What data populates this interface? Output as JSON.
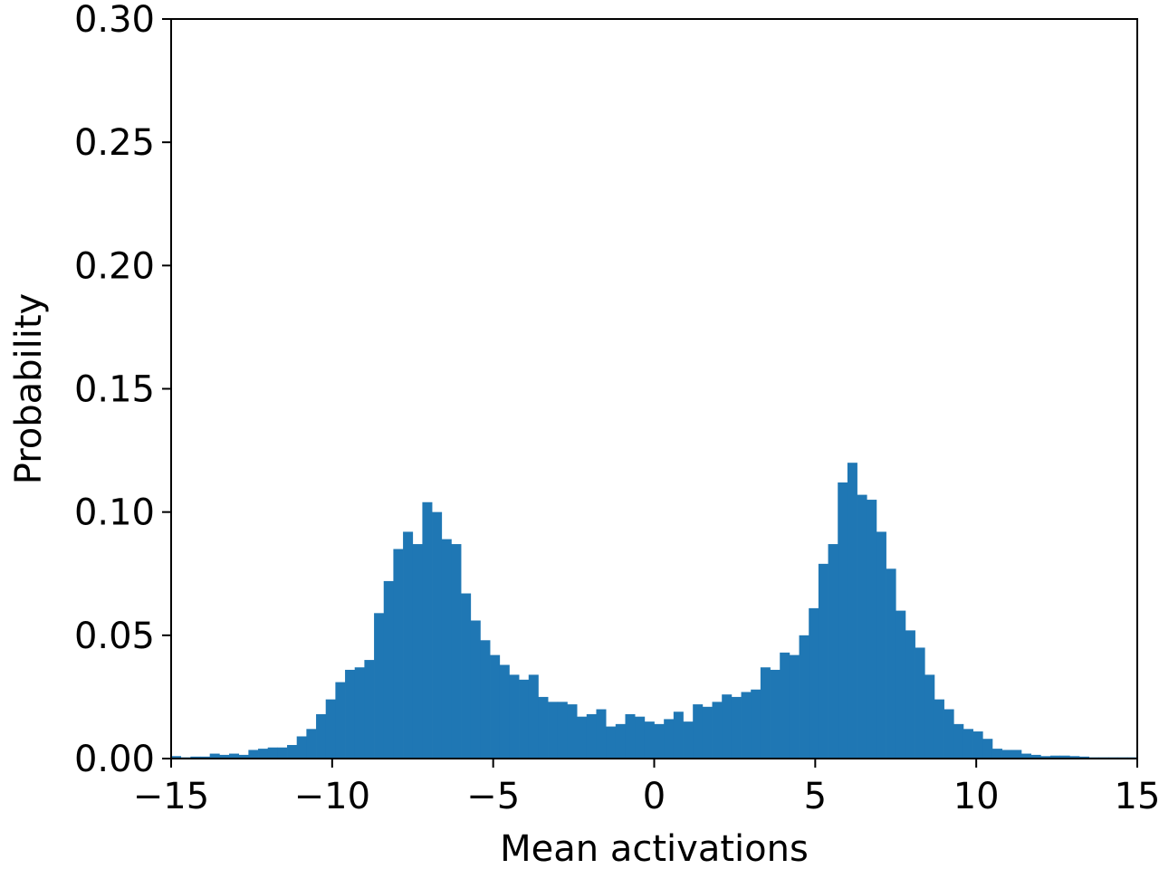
{
  "chart_data": {
    "type": "bar",
    "xlabel": "Mean activations",
    "ylabel": "Probability",
    "xlim": [
      -15,
      15
    ],
    "ylim": [
      0,
      0.3
    ],
    "x_ticks": [
      -15,
      -10,
      -5,
      0,
      5,
      10,
      15
    ],
    "x_tick_labels": [
      "−15",
      "−10",
      "−5",
      "0",
      "5",
      "10",
      "15"
    ],
    "y_ticks": [
      0,
      0.05,
      0.1,
      0.15,
      0.2,
      0.25,
      0.3
    ],
    "y_tick_labels": [
      "0.00",
      "0.05",
      "0.10",
      "0.15",
      "0.20",
      "0.25",
      "0.30"
    ],
    "grid": false,
    "bar_color": "#1f77b4",
    "bin_start": -15,
    "bin_width": 0.3,
    "values": [
      0.001,
      0.0005,
      0.0008,
      0.0008,
      0.002,
      0.0015,
      0.002,
      0.0015,
      0.0035,
      0.004,
      0.0045,
      0.0045,
      0.0055,
      0.009,
      0.012,
      0.018,
      0.024,
      0.031,
      0.036,
      0.037,
      0.04,
      0.059,
      0.072,
      0.085,
      0.092,
      0.087,
      0.104,
      0.1,
      0.089,
      0.087,
      0.067,
      0.056,
      0.048,
      0.042,
      0.038,
      0.034,
      0.032,
      0.034,
      0.025,
      0.023,
      0.023,
      0.022,
      0.017,
      0.018,
      0.02,
      0.013,
      0.014,
      0.018,
      0.017,
      0.015,
      0.014,
      0.016,
      0.019,
      0.015,
      0.022,
      0.021,
      0.023,
      0.026,
      0.025,
      0.027,
      0.028,
      0.037,
      0.036,
      0.043,
      0.042,
      0.05,
      0.061,
      0.079,
      0.087,
      0.112,
      0.12,
      0.107,
      0.105,
      0.092,
      0.077,
      0.06,
      0.052,
      0.045,
      0.034,
      0.024,
      0.02,
      0.014,
      0.012,
      0.011,
      0.008,
      0.004,
      0.0035,
      0.0035,
      0.002,
      0.0015,
      0.001,
      0.0012,
      0.0012,
      0.001,
      0.0008,
      0.0005,
      0.0005,
      0.0005,
      0.0005,
      0.0005
    ]
  }
}
